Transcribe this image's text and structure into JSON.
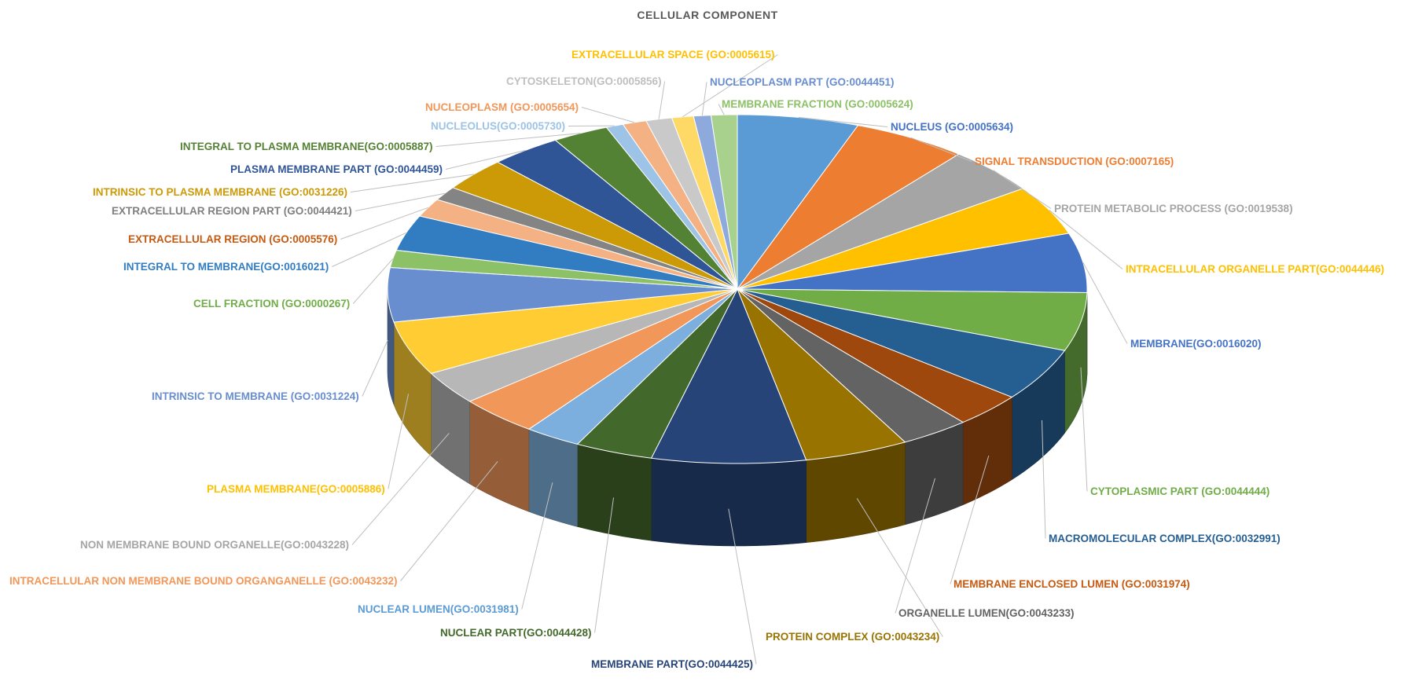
{
  "chart_data": {
    "type": "pie",
    "title": "CELLULAR COMPONENT",
    "style": "3d-exploded-perspective",
    "start_label": "NUCLEUS (GO:0005634)",
    "direction": "clockwise",
    "slices": [
      {
        "label": "NUCLEUS (GO:0005634)",
        "value": 5.6,
        "color": "#5B9BD5"
      },
      {
        "label": "SIGNAL TRANSDUCTION (GO:0007165)",
        "value": 5.3,
        "color": "#ED7D31"
      },
      {
        "label": "PROTEIN METABOLIC PROCESS (GO:0019538)",
        "value": 4.3,
        "color": "#A5A5A5"
      },
      {
        "label": "INTRACELLULAR ORGANELLE PART(GO:0044446)",
        "value": 4.6,
        "color": "#FFC000"
      },
      {
        "label": "MEMBRANE(GO:0016020)",
        "value": 5.5,
        "color": "#4472C4"
      },
      {
        "label": "CYTOPLASMIC PART (GO:0044444)",
        "value": 5.4,
        "color": "#70AD47"
      },
      {
        "label": "MACROMOLECULAR COMPLEX(GO:0032991)",
        "value": 4.9,
        "color": "#255E91"
      },
      {
        "label": "MEMBRANE ENCLOSED LUMEN (GO:0031974)",
        "value": 3.2,
        "color": "#9E480E"
      },
      {
        "label": "ORGANELLE LUMEN(GO:0043233)",
        "value": 3.2,
        "color": "#636363"
      },
      {
        "label": "PROTEIN COMPLEX (GO:0043234)",
        "value": 4.8,
        "color": "#997300"
      },
      {
        "label": "MEMBRANE PART(GO:0044425)",
        "value": 7.1,
        "color": "#264478"
      },
      {
        "label": "NUCLEAR PART(GO:0044428)",
        "value": 3.6,
        "color": "#43682B"
      },
      {
        "label": "NUCLEAR LUMEN(GO:0031981)",
        "value": 2.6,
        "color": "#7CAFDD"
      },
      {
        "label": "INTRACELLULAR NON MEMBRANE BOUND ORGANGANELLE (GO:0043232)",
        "value": 3.7,
        "color": "#F1975A"
      },
      {
        "label": "NON MEMBRANE BOUND ORGANELLE(GO:0043228)",
        "value": 3.1,
        "color": "#B7B7B7"
      },
      {
        "label": "PLASMA MEMBRANE(GO:0005886)",
        "value": 5.0,
        "color": "#FFCD33"
      },
      {
        "label": "INTRINSIC TO MEMBRANE (GO:0031224)",
        "value": 5.0,
        "color": "#698ED0"
      },
      {
        "label": "CELL FRACTION (GO:0000267)",
        "value": 1.6,
        "color": "#8CC168"
      },
      {
        "label": "INTEGRAL TO MEMBRANE(GO:0016021)",
        "value": 3.3,
        "color": "#327DC2"
      },
      {
        "label": "EXTRACELLULAR REGION (GO:0005576)",
        "value": 1.7,
        "color": "#F4B183"
      },
      {
        "label": "EXTRACELLULAR REGION PART (GO:0044421)",
        "value": 1.3,
        "color": "#848484"
      },
      {
        "label": "INTRINSIC TO PLASMA MEMBRANE (GO:0031226)",
        "value": 3.1,
        "color": "#CC9A06"
      },
      {
        "label": "PLASMA MEMBRANE PART (GO:0044459)",
        "value": 3.3,
        "color": "#2F5597"
      },
      {
        "label": "INTEGRAL TO PLASMA MEMBRANE(GO:0005887)",
        "value": 2.6,
        "color": "#548235"
      },
      {
        "label": "NUCLEOLUS(GO:0005730)",
        "value": 0.8,
        "color": "#9DC3E6"
      },
      {
        "label": "NUCLEOPLASM (GO:0005654)",
        "value": 1.1,
        "color": "#F4B183"
      },
      {
        "label": "CYTOSKELETON(GO:0005856)",
        "value": 1.2,
        "color": "#C9C9C9"
      },
      {
        "label": "EXTRACELLULAR SPACE (GO:0005615)",
        "value": 1.0,
        "color": "#FFD966"
      },
      {
        "label": "NUCLEOPLASM PART (GO:0044451)",
        "value": 0.8,
        "color": "#8EA9DB"
      },
      {
        "label": "MEMBRANE FRACTION (GO:0005624)",
        "value": 1.2,
        "color": "#A9D18E"
      }
    ]
  },
  "labels": [
    {
      "text": "NUCLEUS (GO:0005634)",
      "color": "#4472C4"
    },
    {
      "text": "SIGNAL TRANSDUCTION (GO:0007165)",
      "color": "#ED7D31"
    },
    {
      "text": "PROTEIN METABOLIC PROCESS (GO:0019538)",
      "color": "#A5A5A5"
    },
    {
      "text": "INTRACELLULAR ORGANELLE PART(GO:0044446)",
      "color": "#FFC000"
    },
    {
      "text": "MEMBRANE(GO:0016020)",
      "color": "#4472C4"
    },
    {
      "text": "CYTOPLASMIC PART (GO:0044444)",
      "color": "#70AD47"
    },
    {
      "text": "MACROMOLECULAR COMPLEX(GO:0032991)",
      "color": "#255E91"
    },
    {
      "text": "MEMBRANE ENCLOSED LUMEN (GO:0031974)",
      "color": "#C55A11"
    },
    {
      "text": "ORGANELLE LUMEN(GO:0043233)",
      "color": "#636363"
    },
    {
      "text": "PROTEIN COMPLEX (GO:0043234)",
      "color": "#997300"
    },
    {
      "text": "MEMBRANE PART(GO:0044425)",
      "color": "#264478"
    },
    {
      "text": "NUCLEAR PART(GO:0044428)",
      "color": "#43682B"
    },
    {
      "text": "NUCLEAR LUMEN(GO:0031981)",
      "color": "#5B9BD5"
    },
    {
      "text": "INTRACELLULAR NON MEMBRANE BOUND  ORGANGANELLE  (GO:0043232)",
      "color": "#F1975A"
    },
    {
      "text": "NON MEMBRANE BOUND ORGANELLE(GO:0043228)",
      "color": "#A5A5A5"
    },
    {
      "text": "PLASMA MEMBRANE(GO:0005886)",
      "color": "#FFC000"
    },
    {
      "text": "INTRINSIC TO MEMBRANE (GO:0031224)",
      "color": "#698ED0"
    },
    {
      "text": "CELL FRACTION (GO:0000267)",
      "color": "#70AD47"
    },
    {
      "text": "INTEGRAL TO MEMBRANE(GO:0016021)",
      "color": "#327DC2"
    },
    {
      "text": "EXTRACELLULAR REGION (GO:0005576)",
      "color": "#C55A11"
    },
    {
      "text": "EXTRACELLULAR REGION PART (GO:0044421)",
      "color": "#7F7F7F"
    },
    {
      "text": "INTRINSIC TO PLASMA MEMBRANE (GO:0031226)",
      "color": "#CC9A06"
    },
    {
      "text": "PLASMA MEMBRANE PART (GO:0044459)",
      "color": "#2F5597"
    },
    {
      "text": "INTEGRAL TO PLASMA MEMBRANE(GO:0005887)",
      "color": "#548235"
    },
    {
      "text": "NUCLEOLUS(GO:0005730)",
      "color": "#9DC3E6"
    },
    {
      "text": "NUCLEOPLASM (GO:0005654)",
      "color": "#F1975A"
    },
    {
      "text": "CYTOSKELETON(GO:0005856)",
      "color": "#BFBFBF"
    },
    {
      "text": "EXTRACELLULAR SPACE (GO:0005615)",
      "color": "#FFC000"
    },
    {
      "text": "NUCLEOPLASM PART (GO:0044451)",
      "color": "#698ED0"
    },
    {
      "text": "MEMBRANE FRACTION (GO:0005624)",
      "color": "#8CC168"
    }
  ]
}
